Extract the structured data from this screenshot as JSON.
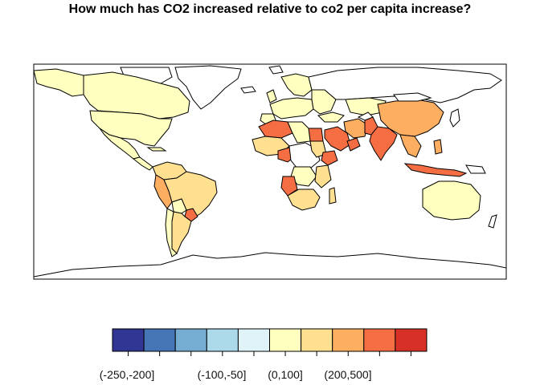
{
  "title": "How much has CO2 increased relative to co2 per capita increase?",
  "legend": {
    "colors": [
      "#313695",
      "#4575b4",
      "#74add1",
      "#abd9e9",
      "#e0f3f8",
      "#ffffbf",
      "#fee090",
      "#fdae61",
      "#f46d43",
      "#d73027"
    ],
    "labels": [
      "(-250,-200]",
      "(-100,-50]",
      "(0,100]",
      "(200,500]"
    ]
  },
  "map_colors": {
    "light_yellow": "#ffffbf",
    "light_orange": "#fee090",
    "orange": "#fdae61",
    "red_orange": "#f46d43",
    "no_data": "#ffffff"
  }
}
